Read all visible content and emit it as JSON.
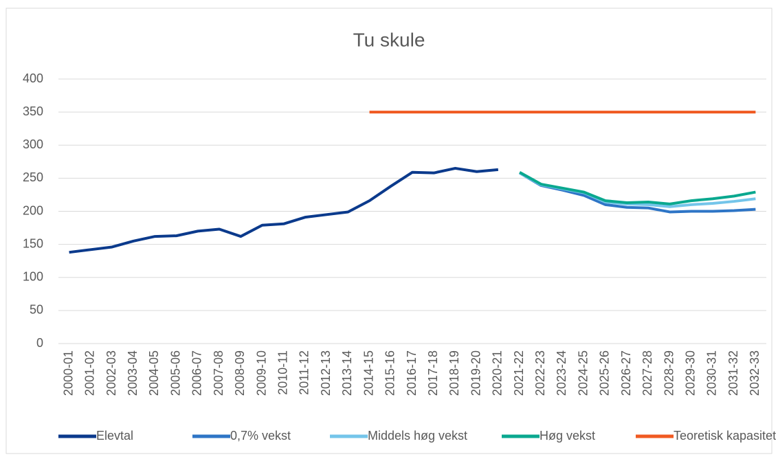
{
  "chart_data": {
    "type": "line",
    "title": "Tu skule",
    "categories": [
      "2000-01",
      "2001-02",
      "2002-03",
      "2003-04",
      "2004-05",
      "2005-06",
      "2006-07",
      "2007-08",
      "2008-09",
      "2009-10",
      "2010-11",
      "2011-12",
      "2012-13",
      "2013-14",
      "2014-15",
      "2015-16",
      "2016-17",
      "2017-18",
      "2018-19",
      "2019-20",
      "2020-21",
      "2021-22",
      "2022-23",
      "2023-24",
      "2024-25",
      "2025-26",
      "2026-27",
      "2027-28",
      "2028-29",
      "2029-30",
      "2030-31",
      "2031-32",
      "2032-33"
    ],
    "series": [
      {
        "name": "Elevtal",
        "color": "#0b3a8c",
        "values": [
          138,
          142,
          146,
          155,
          162,
          163,
          170,
          173,
          162,
          179,
          181,
          191,
          195,
          199,
          216,
          238,
          259,
          258,
          265,
          260,
          263,
          null,
          null,
          null,
          null,
          null,
          null,
          null,
          null,
          null,
          null,
          null,
          null
        ]
      },
      {
        "name": "0,7% vekst",
        "color": "#2e75c6",
        "values": [
          null,
          null,
          null,
          null,
          null,
          null,
          null,
          null,
          null,
          null,
          null,
          null,
          null,
          null,
          null,
          null,
          null,
          null,
          null,
          null,
          null,
          258,
          239,
          232,
          224,
          210,
          206,
          205,
          199,
          200,
          200,
          201,
          203
        ]
      },
      {
        "name": "Middels høg vekst",
        "color": "#74c5ea",
        "values": [
          null,
          null,
          null,
          null,
          null,
          null,
          null,
          null,
          null,
          null,
          null,
          null,
          null,
          null,
          null,
          null,
          null,
          null,
          null,
          null,
          null,
          258,
          240,
          234,
          228,
          214,
          211,
          210,
          207,
          210,
          212,
          215,
          219
        ]
      },
      {
        "name": "Høg vekst",
        "color": "#0aa88f",
        "values": [
          null,
          null,
          null,
          null,
          null,
          null,
          null,
          null,
          null,
          null,
          null,
          null,
          null,
          null,
          null,
          null,
          null,
          null,
          null,
          null,
          null,
          259,
          241,
          235,
          229,
          216,
          213,
          214,
          211,
          216,
          219,
          223,
          229
        ]
      },
      {
        "name": "Teoretisk kapasitet",
        "color": "#f05a22",
        "values": [
          null,
          null,
          null,
          null,
          null,
          null,
          null,
          null,
          null,
          null,
          null,
          null,
          null,
          null,
          350,
          350,
          350,
          350,
          350,
          350,
          350,
          350,
          350,
          350,
          350,
          350,
          350,
          350,
          350,
          350,
          350,
          350,
          350
        ]
      }
    ],
    "ylim": [
      0,
      400
    ],
    "yticks": [
      0,
      50,
      100,
      150,
      200,
      250,
      300,
      350,
      400
    ],
    "grid": true,
    "legend": "bottom"
  }
}
